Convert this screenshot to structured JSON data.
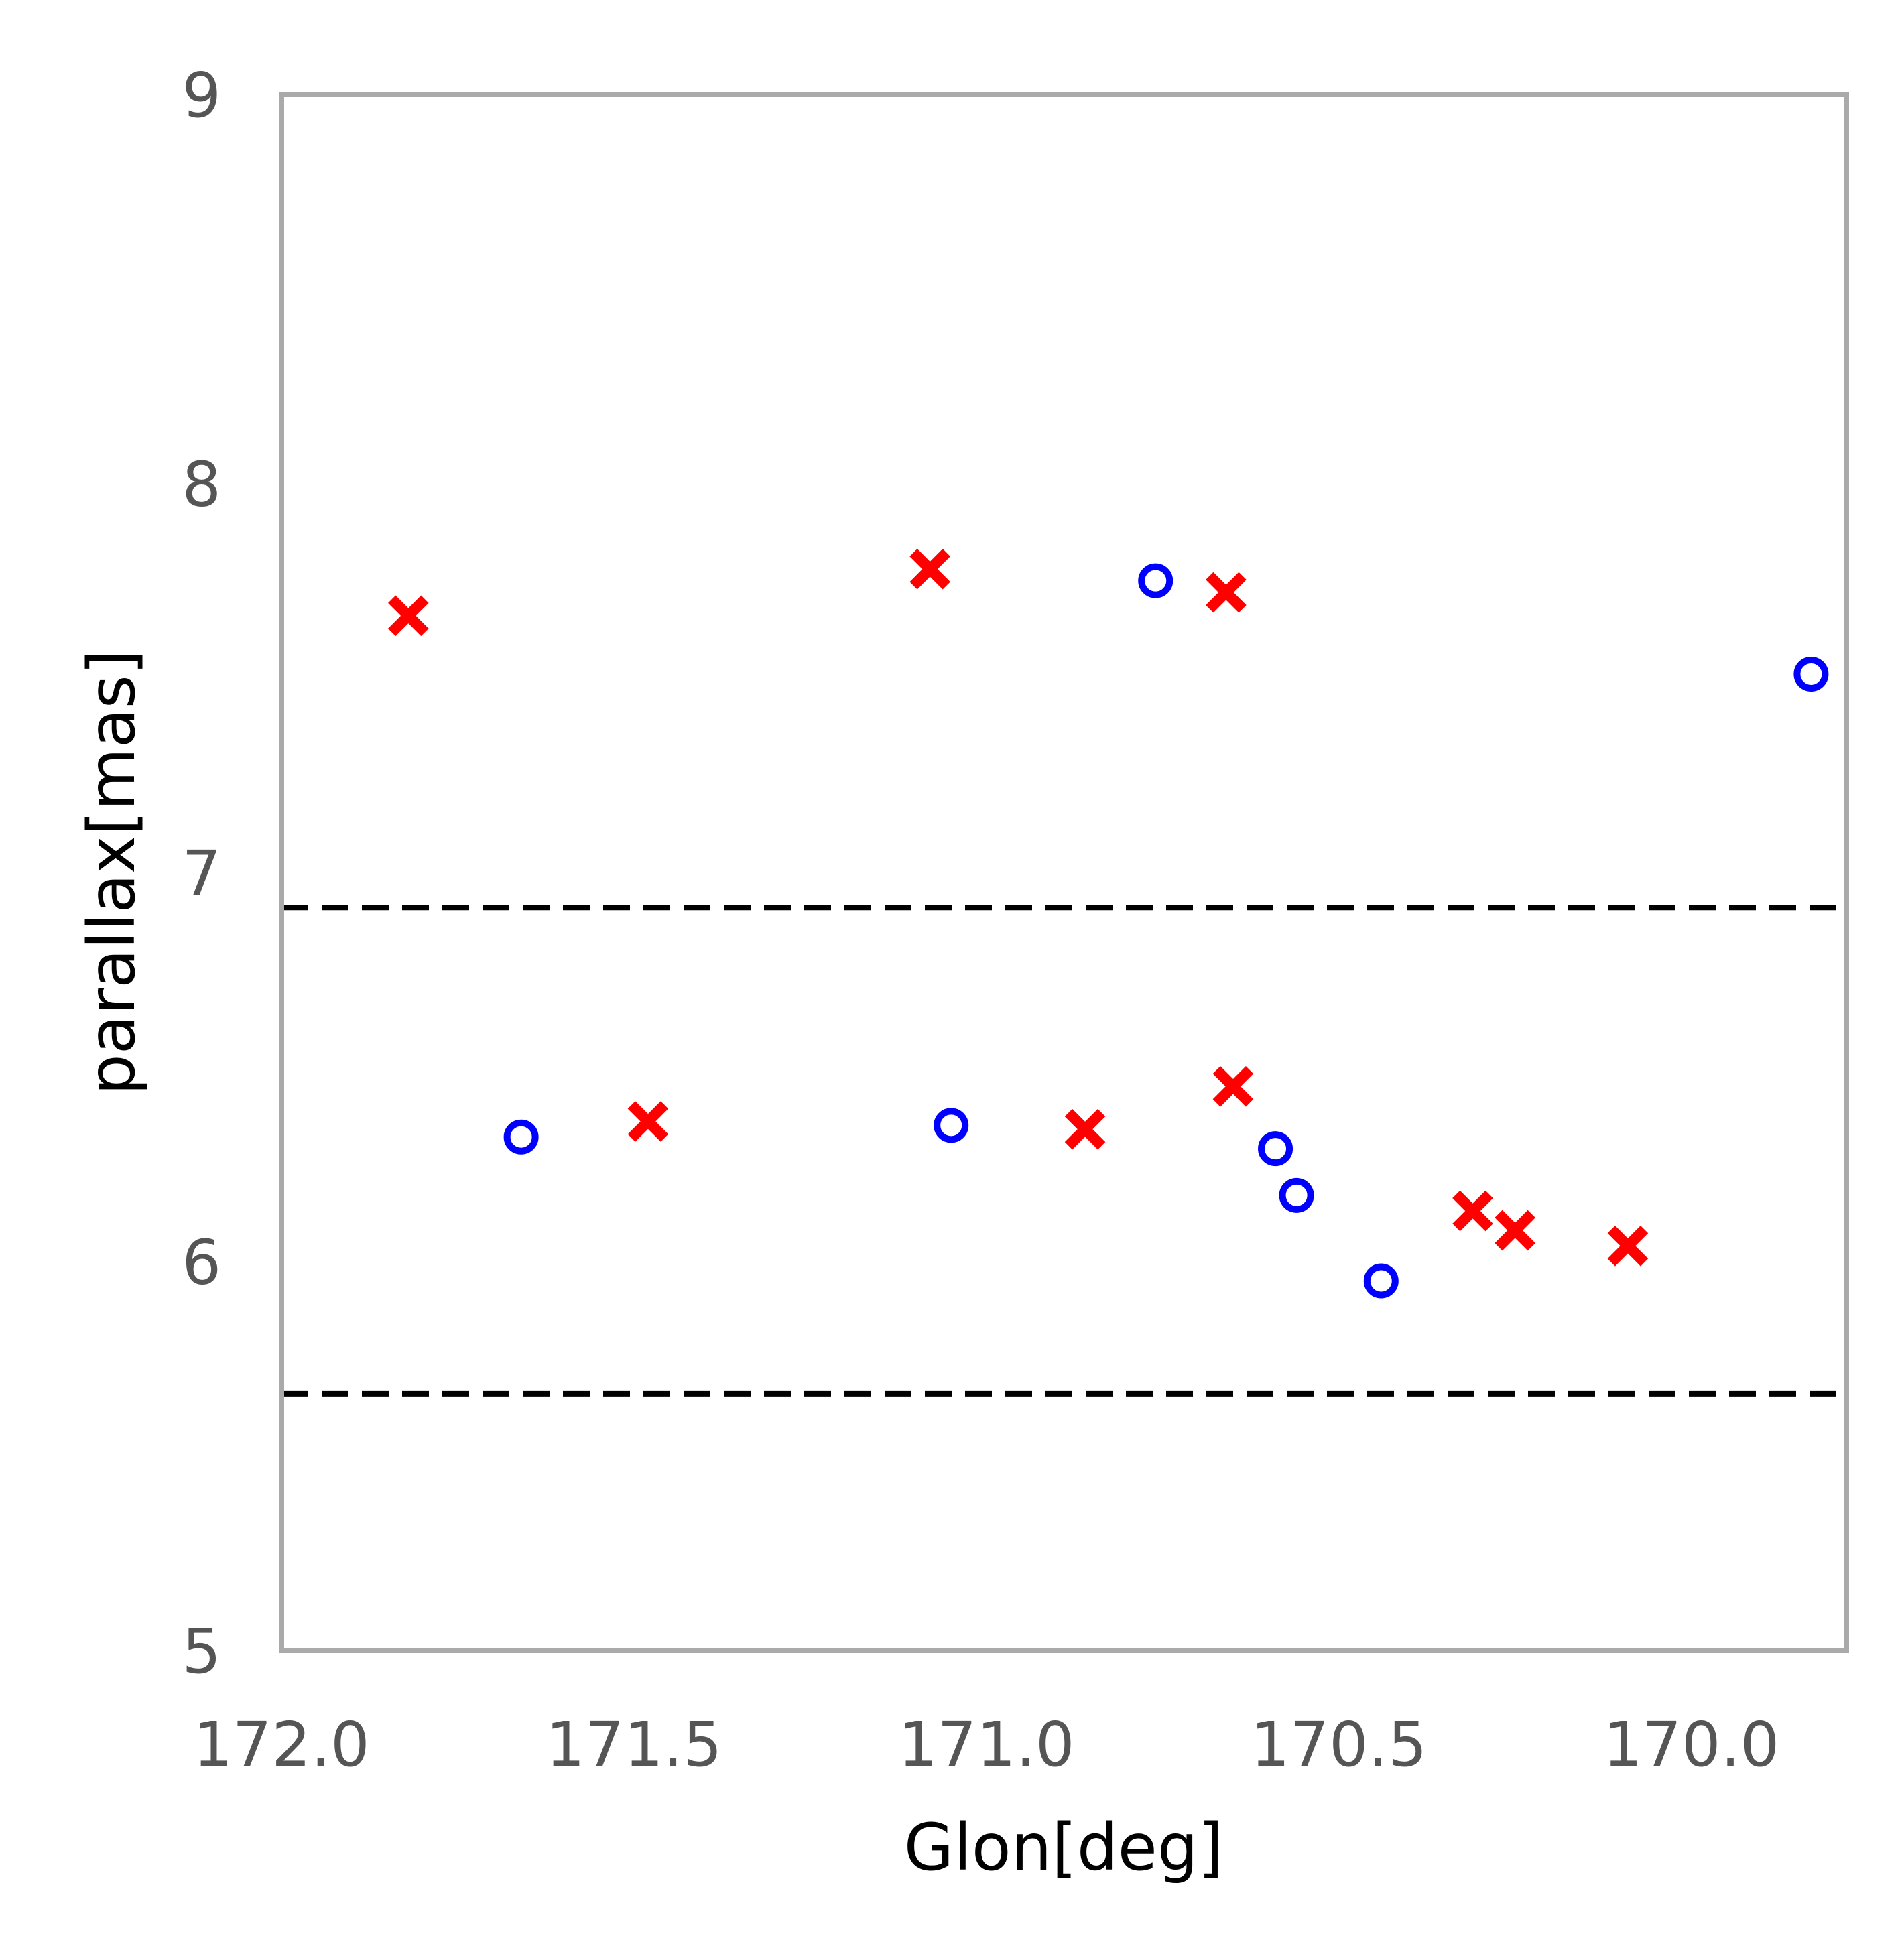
{
  "chart_data": {
    "type": "scatter",
    "xlabel": "Glon[deg]",
    "ylabel": "parallax[mas]",
    "xlim": [
      172.0,
      169.78
    ],
    "ylim": [
      5,
      9
    ],
    "x_inverted": true,
    "xticks": [
      172.0,
      171.5,
      171.0,
      170.5,
      170.0
    ],
    "xtick_labels": [
      "172.0",
      "171.5",
      "171.0",
      "170.5",
      "170.0"
    ],
    "yticks": [
      5,
      6,
      7,
      8,
      9
    ],
    "ytick_labels": [
      "5",
      "6",
      "7",
      "8",
      "9"
    ],
    "grid": false,
    "hlines": [
      {
        "y": 6.91,
        "style": "dashed",
        "color": "#000000"
      },
      {
        "y": 5.66,
        "style": "dashed",
        "color": "#000000"
      }
    ],
    "series": [
      {
        "marker": "x",
        "color": "#ff0000",
        "points": [
          {
            "x": 171.82,
            "y": 7.66
          },
          {
            "x": 171.48,
            "y": 6.36
          },
          {
            "x": 171.08,
            "y": 7.78
          },
          {
            "x": 170.86,
            "y": 6.34
          },
          {
            "x": 170.66,
            "y": 7.72
          },
          {
            "x": 170.65,
            "y": 6.45
          },
          {
            "x": 170.31,
            "y": 6.13
          },
          {
            "x": 170.25,
            "y": 6.08
          },
          {
            "x": 170.09,
            "y": 6.04
          }
        ]
      },
      {
        "marker": "o",
        "color": "#0000ff",
        "points": [
          {
            "x": 171.66,
            "y": 6.32
          },
          {
            "x": 171.05,
            "y": 6.35
          },
          {
            "x": 170.76,
            "y": 7.75
          },
          {
            "x": 170.59,
            "y": 6.29
          },
          {
            "x": 170.56,
            "y": 6.17
          },
          {
            "x": 170.44,
            "y": 5.95
          },
          {
            "x": 169.83,
            "y": 7.51
          }
        ]
      }
    ]
  }
}
